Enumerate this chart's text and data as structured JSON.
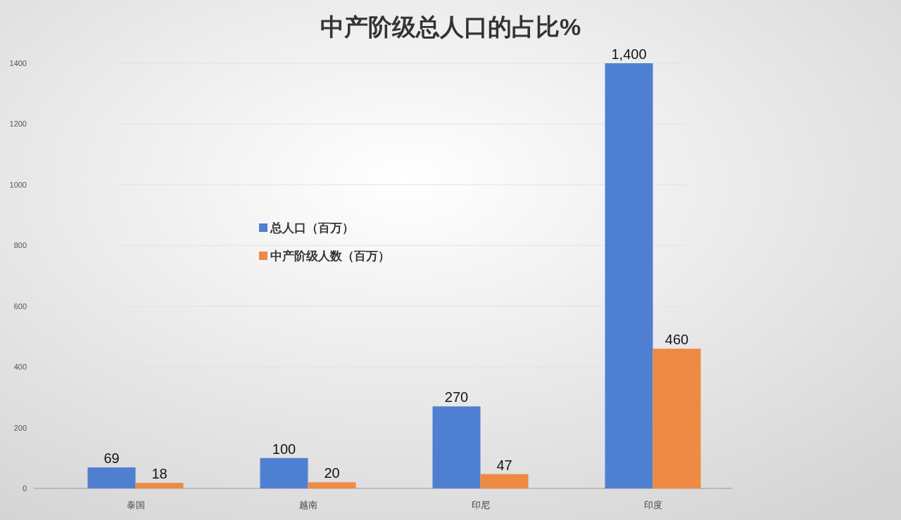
{
  "chart_data": {
    "type": "bar",
    "title": "中产阶级总人口的占比%",
    "categories": [
      "泰国",
      "越南",
      "印尼",
      "印度"
    ],
    "series": [
      {
        "name": "总人口（百万）",
        "color": "#4f7fd0",
        "values": [
          69,
          100,
          270,
          1400
        ],
        "value_labels": [
          "69",
          "100",
          "270",
          "1,400"
        ]
      },
      {
        "name": "中产阶级人数（百万）",
        "color": "#ee8a43",
        "values": [
          18,
          20,
          47,
          460
        ],
        "value_labels": [
          "18",
          "20",
          "47",
          "460"
        ]
      }
    ],
    "ylim": [
      0,
      1400
    ],
    "yticks": [
      0,
      200,
      400,
      600,
      800,
      1000,
      1200,
      1400
    ],
    "grid": "y",
    "legend": "center"
  }
}
